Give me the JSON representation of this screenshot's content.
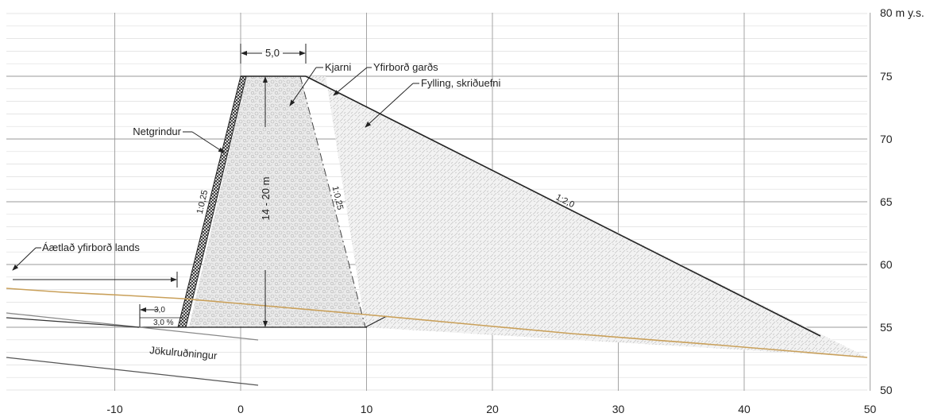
{
  "axes": {
    "x_ticks": [
      "-10",
      "0",
      "10",
      "20",
      "30",
      "40",
      "50"
    ],
    "y_ticks": [
      "50",
      "55",
      "60",
      "65",
      "70",
      "75"
    ],
    "y_top_label": "80 m y.s.",
    "x_range": [
      -18,
      50
    ],
    "y_range": [
      50,
      80
    ]
  },
  "labels": {
    "kjarni": "Kjarni",
    "yfirbord_gards": "Yfirborð garðs",
    "fylling": "Fylling, skriðuefni",
    "netgrindur": "Netgrindur",
    "aaetlad": "Áætlað yfirborð lands",
    "jokul": "Jökulruðningur",
    "crest_width": "5,0",
    "height": "14 - 20 m",
    "slope_net": "1:0,25",
    "slope_core": "1:0,25",
    "slope_fill": "1:2,0",
    "step": "3,0",
    "step_pct": "3,0 %"
  },
  "colors": {
    "terrain": "#c9a05a",
    "fill_hatch": "#bdbdbd",
    "grid": "#bbbbbb"
  }
}
